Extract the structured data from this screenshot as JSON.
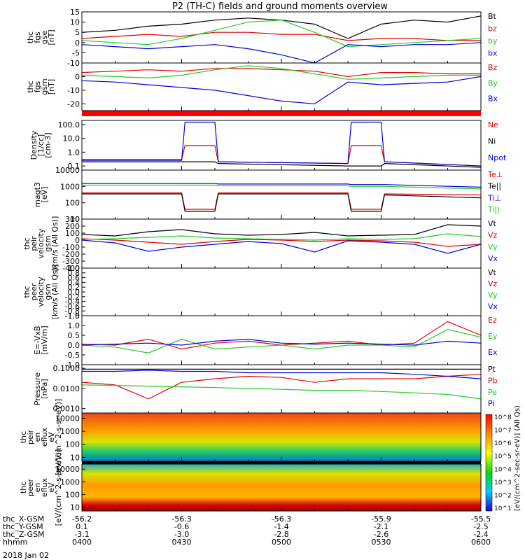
{
  "title": "P2 (TH-C) fields and ground moments overview",
  "date_label": "2018 Jan 02",
  "colors": {
    "black": "#000000",
    "red": "#e00000",
    "green": "#22cc22",
    "blue": "#0000dd"
  },
  "time_axis": {
    "hhmm": [
      "0400",
      "0430",
      "0500",
      "0530",
      "0600"
    ],
    "rows": [
      {
        "label": "thc_X-GSM",
        "values": [
          "-56.2",
          "-56.3",
          "-56.3",
          "-55.9",
          "-55.5"
        ]
      },
      {
        "label": "thc_Y-GSM",
        "values": [
          "0.1",
          "-0.6",
          "-1.4",
          "-2.1",
          "-2.5"
        ]
      },
      {
        "label": "thc_Z-GSM",
        "values": [
          "-3.1",
          "-3.0",
          "-2.8",
          "-2.6",
          "-2.4"
        ]
      },
      {
        "label": "hhmm",
        "values": [
          "0400",
          "0430",
          "0500",
          "0530",
          "0600"
        ]
      }
    ]
  },
  "colorbar": {
    "label": "[eV/(cm^2-sec-sr-eV)] (All Qs)",
    "ticks": [
      "10^8",
      "10^7",
      "10^6",
      "10^5",
      "10^4",
      "10^3",
      "10^2",
      "10^1"
    ]
  },
  "chart_data": [
    {
      "id": "fgs_gse",
      "type": "line",
      "ylabel": [
        "thc",
        "fgs",
        "gse",
        "[nT]"
      ],
      "ylim": [
        -10,
        15
      ],
      "yticks": [
        "15",
        "10",
        "5",
        "0",
        "-5",
        "-10"
      ],
      "series": [
        {
          "name": "Bt",
          "color": "#000000",
          "x": [
            0,
            10,
            20,
            30,
            40,
            50,
            60,
            70,
            80,
            90,
            100,
            110,
            120
          ],
          "values": [
            5,
            6,
            8,
            9,
            11,
            12,
            11,
            9,
            2,
            9,
            11,
            10,
            13
          ]
        },
        {
          "name": "bz",
          "color": "#e00000",
          "x": [
            0,
            10,
            20,
            30,
            40,
            50,
            60,
            70,
            80,
            90,
            100,
            110,
            120
          ],
          "values": [
            2,
            3,
            4,
            3,
            5,
            5,
            4,
            4,
            1,
            2,
            2,
            1,
            1
          ]
        },
        {
          "name": "by",
          "color": "#22cc22",
          "x": [
            0,
            10,
            20,
            30,
            40,
            50,
            60,
            70,
            80,
            90,
            100,
            110,
            120
          ],
          "values": [
            1,
            0,
            -1,
            2,
            6,
            10,
            11,
            5,
            -2,
            -1,
            0,
            1,
            2
          ]
        },
        {
          "name": "bx",
          "color": "#0000dd",
          "x": [
            0,
            10,
            20,
            30,
            40,
            50,
            60,
            70,
            80,
            90,
            100,
            110,
            120
          ],
          "values": [
            -1,
            -2,
            -3,
            -2,
            -1,
            -3,
            -6,
            -10,
            -1,
            -2,
            -1,
            -1,
            0
          ]
        }
      ]
    },
    {
      "id": "fgs_gsm",
      "type": "line",
      "ylabel": [
        "thc",
        "fgs",
        "gsm",
        "[nT]"
      ],
      "ylim": [
        -25,
        10
      ],
      "yticks": [
        "0",
        "-10",
        "-20"
      ],
      "series": [
        {
          "name": "Bz",
          "color": "#e00000",
          "x": [
            0,
            10,
            20,
            30,
            40,
            50,
            60,
            70,
            80,
            90,
            100,
            110,
            120
          ],
          "values": [
            3,
            4,
            5,
            4,
            6,
            6,
            5,
            4,
            0,
            3,
            3,
            2,
            2
          ]
        },
        {
          "name": "By",
          "color": "#22cc22",
          "x": [
            0,
            10,
            20,
            30,
            40,
            50,
            60,
            70,
            80,
            90,
            100,
            110,
            120
          ],
          "values": [
            1,
            0,
            -1,
            1,
            5,
            8,
            6,
            2,
            -2,
            -1,
            0,
            1,
            1
          ]
        },
        {
          "name": "Bx",
          "color": "#0000dd",
          "x": [
            0,
            10,
            20,
            30,
            40,
            50,
            60,
            70,
            80,
            90,
            100,
            110,
            120
          ],
          "values": [
            -3,
            -4,
            -6,
            -8,
            -10,
            -14,
            -18,
            -20,
            -4,
            -6,
            -5,
            -4,
            0
          ]
        }
      ]
    },
    {
      "id": "density",
      "type": "line",
      "ylabel": [
        "Density",
        "[1/cc]",
        "[cm-3]"
      ],
      "scale": "log",
      "ylim": [
        0.05,
        200
      ],
      "yticks": [
        "100.0",
        "10.0",
        "1.0",
        "0.1"
      ],
      "series": [
        {
          "name": "Ne",
          "color": "#e00000",
          "x": [
            0,
            30,
            31,
            40,
            41,
            80,
            81,
            90,
            91,
            120
          ],
          "values": [
            0.3,
            0.3,
            3,
            3,
            0.2,
            0.15,
            3,
            3,
            0.2,
            0.1
          ]
        },
        {
          "name": "Ni",
          "color": "#000000",
          "x": [
            0,
            30,
            31,
            40,
            41,
            80,
            81,
            90,
            91,
            120
          ],
          "values": [
            0.2,
            0.2,
            0.2,
            0.2,
            0.15,
            0.1,
            0.1,
            0.1,
            0.15,
            0.08
          ]
        },
        {
          "name": "Npot",
          "color": "#0000dd",
          "x": [
            0,
            30,
            31,
            40,
            41,
            80,
            81,
            90,
            91,
            120
          ],
          "values": [
            0.25,
            0.25,
            150,
            150,
            0.2,
            0.15,
            150,
            150,
            0.2,
            0.1
          ]
        }
      ]
    },
    {
      "id": "temperature",
      "type": "line",
      "ylabel": [
        "magt3",
        "[eV]"
      ],
      "scale": "log",
      "ylim": [
        10,
        10000
      ],
      "yticks": [
        "10000",
        "1000",
        "100",
        "10"
      ],
      "series": [
        {
          "name": "Te⊥",
          "color": "#e00000",
          "x": [
            0,
            30,
            31,
            40,
            41,
            80,
            81,
            90,
            91,
            120
          ],
          "values": [
            400,
            400,
            40,
            40,
            400,
            400,
            40,
            40,
            350,
            300
          ]
        },
        {
          "name": "Te||",
          "color": "#000000",
          "x": [
            0,
            30,
            31,
            40,
            41,
            80,
            81,
            90,
            91,
            120
          ],
          "values": [
            350,
            350,
            30,
            30,
            350,
            350,
            30,
            30,
            300,
            200
          ]
        },
        {
          "name": "Ti⊥",
          "color": "#0000dd",
          "x": [
            0,
            30,
            31,
            40,
            41,
            80,
            81,
            90,
            91,
            120
          ],
          "values": [
            1500,
            1500,
            1500,
            1500,
            1400,
            1400,
            1300,
            1300,
            1300,
            900
          ]
        },
        {
          "name": "Ti||",
          "color": "#22cc22",
          "x": [
            0,
            30,
            31,
            40,
            41,
            80,
            81,
            90,
            91,
            120
          ],
          "values": [
            1200,
            1200,
            1200,
            1200,
            1100,
            1100,
            1000,
            1000,
            1000,
            700
          ]
        }
      ]
    },
    {
      "id": "peir_velocity",
      "type": "line",
      "ylabel": [
        "thc",
        "peir",
        "velocity",
        "gsm",
        "[km/s (All Qs)]"
      ],
      "ylim": [
        -400,
        300
      ],
      "yticks": [
        "300",
        "200",
        "100",
        "0",
        "-100",
        "-200",
        "-300",
        "-400"
      ],
      "series": [
        {
          "name": "Vt",
          "color": "#000000",
          "x": [
            0,
            10,
            20,
            30,
            40,
            50,
            60,
            70,
            80,
            90,
            100,
            110,
            120
          ],
          "values": [
            80,
            60,
            120,
            150,
            90,
            70,
            80,
            110,
            60,
            70,
            80,
            220,
            200
          ]
        },
        {
          "name": "Vz",
          "color": "#e00000",
          "x": [
            0,
            10,
            20,
            30,
            40,
            50,
            60,
            70,
            80,
            90,
            100,
            110,
            120
          ],
          "values": [
            20,
            0,
            -30,
            -60,
            -20,
            10,
            0,
            -20,
            0,
            -10,
            -30,
            -90,
            -60
          ]
        },
        {
          "name": "Vy",
          "color": "#22cc22",
          "x": [
            0,
            10,
            20,
            30,
            40,
            50,
            60,
            70,
            80,
            90,
            100,
            110,
            120
          ],
          "values": [
            10,
            20,
            40,
            60,
            30,
            20,
            10,
            0,
            20,
            10,
            20,
            90,
            50
          ]
        },
        {
          "name": "Vx",
          "color": "#0000dd",
          "x": [
            0,
            10,
            20,
            30,
            40,
            50,
            60,
            70,
            80,
            90,
            100,
            110,
            120
          ],
          "values": [
            0,
            -40,
            -160,
            -100,
            -60,
            -20,
            -50,
            -170,
            -10,
            -30,
            -60,
            -190,
            -60
          ]
        }
      ]
    },
    {
      "id": "peer_velocity",
      "type": "line",
      "ylabel": [
        "thc",
        "peer",
        "velocity",
        "gsm",
        "[km/s (All Qs)]"
      ],
      "ylim": [
        -1.0,
        1.0
      ],
      "yticks": [
        "1.0",
        "0.8",
        "0.6",
        "0.4",
        "0.2",
        "0.0",
        "-0.2",
        "-0.4",
        "-0.6",
        "-0.8",
        "-1.0"
      ],
      "series": [
        {
          "name": "Vt",
          "color": "#000000",
          "x": [],
          "values": []
        },
        {
          "name": "Vz",
          "color": "#e00000",
          "x": [],
          "values": []
        },
        {
          "name": "Vy",
          "color": "#22cc22",
          "x": [],
          "values": []
        },
        {
          "name": "Vx",
          "color": "#0000dd",
          "x": [],
          "values": []
        }
      ]
    },
    {
      "id": "efield",
      "type": "line",
      "ylabel": [
        "E=-VxB",
        "[mV/m]"
      ],
      "ylim": [
        -1.0,
        1.5
      ],
      "yticks": [
        "1.5",
        "1.0",
        "0.5",
        "0.0",
        "-0.5",
        "-1.0"
      ],
      "series": [
        {
          "name": "Ez",
          "color": "#e00000",
          "x": [
            0,
            10,
            20,
            30,
            40,
            50,
            60,
            70,
            80,
            90,
            100,
            110,
            120
          ],
          "values": [
            0.05,
            0.0,
            0.3,
            -0.2,
            0.1,
            0.2,
            0.0,
            0.1,
            0.2,
            0.0,
            0.1,
            1.2,
            0.5
          ]
        },
        {
          "name": "Ey",
          "color": "#22cc22",
          "x": [
            0,
            10,
            20,
            30,
            40,
            50,
            60,
            70,
            80,
            90,
            100,
            110,
            120
          ],
          "values": [
            0.0,
            -0.1,
            -0.4,
            0.3,
            -0.2,
            -0.1,
            0.0,
            -0.2,
            0.0,
            0.0,
            -0.1,
            0.8,
            0.4
          ]
        },
        {
          "name": "Ex",
          "color": "#0000dd",
          "x": [
            0,
            10,
            20,
            30,
            40,
            50,
            60,
            70,
            80,
            90,
            100,
            110,
            120
          ],
          "values": [
            0.0,
            0.05,
            0.1,
            0.0,
            0.2,
            0.3,
            0.1,
            0.05,
            0.1,
            0.05,
            0.0,
            0.2,
            0.1
          ]
        }
      ]
    },
    {
      "id": "pressure",
      "type": "line",
      "ylabel": [
        "Pressure",
        "[nPa]"
      ],
      "scale": "log",
      "ylim": [
        0.0006,
        0.15
      ],
      "yticks": [
        "0.1000",
        "0.0100",
        "0.0010"
      ],
      "series": [
        {
          "name": "Pt",
          "color": "#000000",
          "x": [
            0,
            10,
            20,
            30,
            40,
            50,
            60,
            70,
            80,
            90,
            100,
            110,
            120
          ],
          "values": [
            0.09,
            0.09,
            0.09,
            0.09,
            0.09,
            0.09,
            0.09,
            0.09,
            0.09,
            0.09,
            0.09,
            0.09,
            0.09
          ]
        },
        {
          "name": "Pb",
          "color": "#e00000",
          "x": [
            0,
            10,
            20,
            30,
            40,
            50,
            60,
            70,
            80,
            90,
            100,
            110,
            120
          ],
          "values": [
            0.02,
            0.015,
            0.003,
            0.02,
            0.03,
            0.04,
            0.035,
            0.02,
            0.03,
            0.03,
            0.03,
            0.04,
            0.05
          ]
        },
        {
          "name": "Pe",
          "color": "#22cc22",
          "x": [
            0,
            10,
            20,
            30,
            40,
            50,
            60,
            70,
            80,
            90,
            100,
            110,
            120
          ],
          "values": [
            0.015,
            0.014,
            0.013,
            0.012,
            0.011,
            0.01,
            0.009,
            0.008,
            0.008,
            0.007,
            0.006,
            0.005,
            0.003
          ]
        },
        {
          "name": "Pi",
          "color": "#0000dd",
          "x": [
            0,
            10,
            20,
            30,
            40,
            50,
            60,
            70,
            80,
            90,
            100,
            110,
            120
          ],
          "values": [
            0.07,
            0.07,
            0.08,
            0.07,
            0.07,
            0.06,
            0.06,
            0.06,
            0.06,
            0.06,
            0.05,
            0.04,
            0.03
          ]
        }
      ]
    },
    {
      "id": "peir_spec",
      "type": "heatmap",
      "ylabel": [
        "thc",
        "peir",
        "en",
        "eflux",
        "eV",
        "[eV/(cm^2-s-sr-eV)]"
      ],
      "scale": "log",
      "ylim": [
        5,
        25000
      ],
      "yticks": [
        "10000",
        "1000",
        "100",
        "10"
      ]
    },
    {
      "id": "peer_spec",
      "type": "heatmap",
      "ylabel": [
        "thc",
        "peer",
        "en",
        "eflux",
        "eV",
        "[eV/(cm^2-s-sr-eV)]"
      ],
      "scale": "log",
      "ylim": [
        5,
        25000
      ],
      "yticks": [
        "10000",
        "1000",
        "100",
        "10"
      ]
    }
  ]
}
